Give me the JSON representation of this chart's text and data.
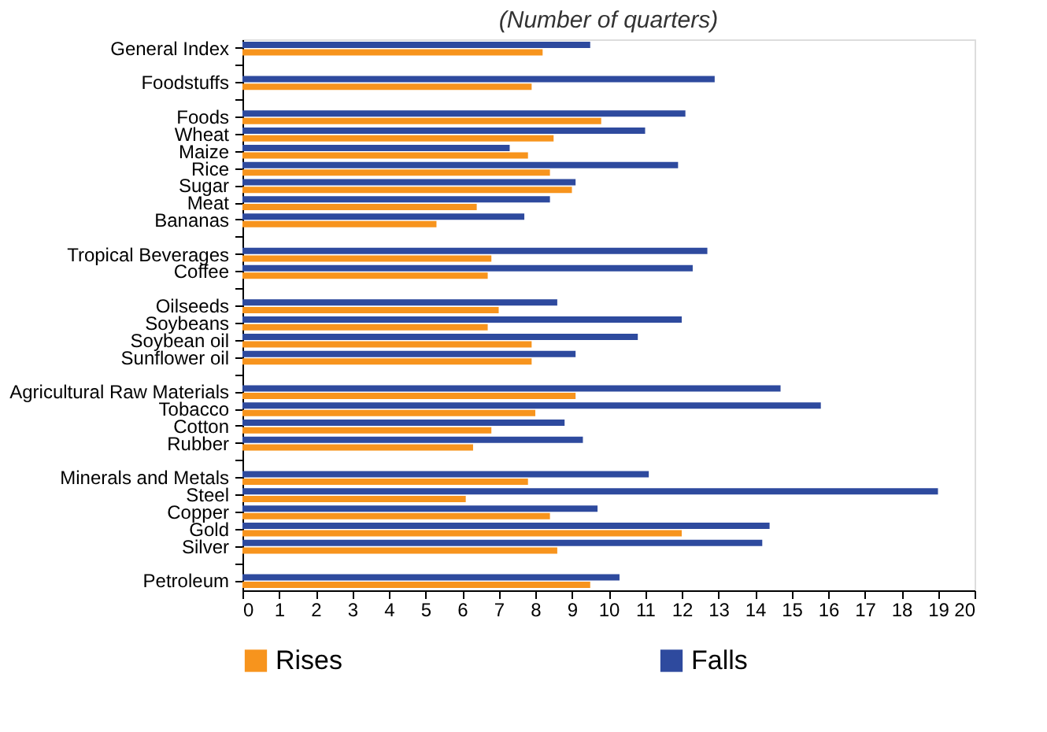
{
  "chart_data": {
    "type": "bar",
    "orientation": "horizontal",
    "subtitle": "(Number of quarters)",
    "categories": [
      "General Index",
      null,
      "Foodstuffs",
      null,
      "Foods",
      "Wheat",
      "Maize",
      "Rice",
      "Sugar",
      "Meat",
      "Bananas",
      null,
      "Tropical Beverages",
      "Coffee",
      null,
      "Oilseeds",
      "Soybeans",
      "Soybean oil",
      "Sunflower oil",
      null,
      "Agricultural Raw Materials",
      "Tobacco",
      "Cotton",
      "Rubber",
      null,
      "Minerals and Metals",
      "Steel",
      "Copper",
      "Gold",
      "Silver",
      null,
      "Petroleum"
    ],
    "series": [
      {
        "name": "Rises",
        "color": "#f7941d",
        "values": [
          8.2,
          null,
          7.9,
          null,
          9.8,
          8.5,
          7.8,
          8.4,
          9.0,
          6.4,
          5.3,
          null,
          6.8,
          6.7,
          null,
          7.0,
          6.7,
          7.9,
          7.9,
          null,
          9.1,
          8.0,
          6.8,
          6.3,
          null,
          7.8,
          6.1,
          8.4,
          12.0,
          8.6,
          null,
          9.5
        ]
      },
      {
        "name": "Falls",
        "color": "#2e4a9e",
        "values": [
          9.5,
          null,
          12.9,
          null,
          12.1,
          11.0,
          7.3,
          11.9,
          9.1,
          8.4,
          7.7,
          null,
          12.7,
          12.3,
          null,
          8.6,
          12.0,
          10.8,
          9.1,
          null,
          14.7,
          15.8,
          8.8,
          9.3,
          null,
          11.1,
          19.0,
          9.7,
          14.4,
          14.2,
          null,
          10.3
        ]
      }
    ],
    "xlim": [
      0,
      20
    ],
    "xticks": [
      0,
      1,
      2,
      3,
      4,
      5,
      6,
      7,
      8,
      9,
      10,
      11,
      12,
      13,
      14,
      15,
      16,
      17,
      18,
      19,
      20
    ],
    "grid": false,
    "legend": "bottom"
  }
}
